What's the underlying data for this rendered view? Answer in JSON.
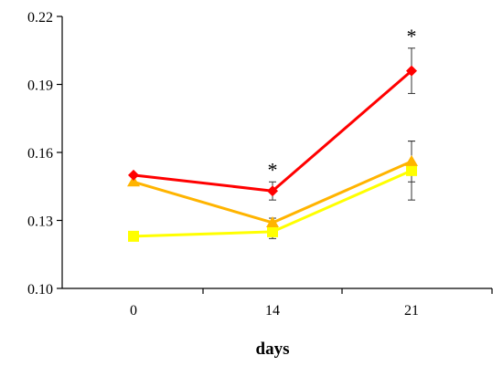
{
  "chart_data": {
    "type": "line",
    "title": "",
    "xlabel": "days",
    "ylabel": "",
    "categories": [
      "0",
      "14",
      "21"
    ],
    "ylim": [
      0.1,
      0.22
    ],
    "yticks": [
      "0.10",
      "0.13",
      "0.16",
      "0.19",
      "0.22"
    ],
    "grid": false,
    "legend": "none",
    "series": [
      {
        "color": "#ff0000",
        "marker": "diamond",
        "values": [
          0.15,
          0.143,
          0.196
        ],
        "errors": [
          0,
          0.004,
          0.01
        ]
      },
      {
        "color": "#ffb400",
        "marker": "triangle",
        "values": [
          0.147,
          0.129,
          0.156
        ],
        "errors": [
          0,
          0.002,
          0.009
        ]
      },
      {
        "color": "#ffff00",
        "marker": "square",
        "values": [
          0.123,
          0.125,
          0.152
        ],
        "errors": [
          0,
          0.003,
          0.013
        ]
      }
    ],
    "annotations": [
      {
        "category": "14",
        "text": "*",
        "above_value": 0.147
      },
      {
        "category": "21",
        "text": "*",
        "above_value": 0.206
      }
    ]
  }
}
